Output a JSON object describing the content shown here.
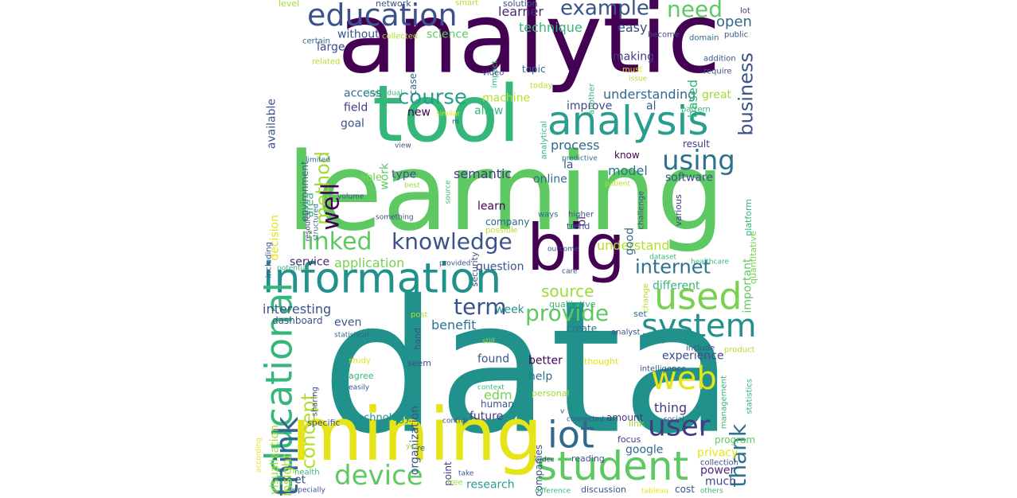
{
  "wordcloud": {
    "words": [
      {
        "text": "data",
        "color": "#21918c"
      },
      {
        "text": "learning",
        "color": "#5ec962"
      },
      {
        "text": "analytic",
        "color": "#440154"
      },
      {
        "text": "tool",
        "color": "#35b779"
      },
      {
        "text": "mining",
        "color": "#e5e419"
      },
      {
        "text": "big",
        "color": "#440154"
      },
      {
        "text": "information",
        "color": "#21918c"
      },
      {
        "text": "analysis",
        "color": "#2a9d8f"
      },
      {
        "text": "student",
        "color": "#5ec962"
      },
      {
        "text": "used",
        "color": "#7ad151"
      },
      {
        "text": "education",
        "color": "#3b528b"
      },
      {
        "text": "educational",
        "color": "#35b779"
      },
      {
        "text": "system",
        "color": "#21918c"
      },
      {
        "text": "web",
        "color": "#e5e419"
      },
      {
        "text": "iot",
        "color": "#31688e"
      },
      {
        "text": "user",
        "color": "#443983"
      },
      {
        "text": "device",
        "color": "#5ec962"
      },
      {
        "text": "knowledge",
        "color": "#3b528b"
      },
      {
        "text": "think",
        "color": "#31688e"
      },
      {
        "text": "using",
        "color": "#2c728e"
      },
      {
        "text": "example",
        "color": "#3b528b"
      },
      {
        "text": "need",
        "color": "#5ec962"
      },
      {
        "text": "course",
        "color": "#2a9d8f"
      },
      {
        "text": "business",
        "color": "#3b528b"
      },
      {
        "text": "internet",
        "color": "#2c728e"
      },
      {
        "text": "linked",
        "color": "#5ec962"
      },
      {
        "text": "method",
        "color": "#a0da39"
      },
      {
        "text": "well",
        "color": "#440154"
      },
      {
        "text": "term",
        "color": "#3b528b"
      },
      {
        "text": "provide",
        "color": "#5ec962"
      },
      {
        "text": "thank",
        "color": "#2c728e"
      },
      {
        "text": "concept",
        "color": "#b5de2b"
      },
      {
        "text": "source",
        "color": "#a0da39"
      },
      {
        "text": "open",
        "color": "#31688e"
      },
      {
        "text": "easy",
        "color": "#3e4a89"
      },
      {
        "text": "technique",
        "color": "#35b779"
      },
      {
        "text": "learner",
        "color": "#482878"
      },
      {
        "text": "science",
        "color": "#5ec962"
      },
      {
        "text": "without",
        "color": "#3b528b"
      },
      {
        "text": "large",
        "color": "#3e4a89"
      },
      {
        "text": "access",
        "color": "#31688e"
      },
      {
        "text": "machine",
        "color": "#b5de2b"
      },
      {
        "text": "allow",
        "color": "#35b779"
      },
      {
        "text": "field",
        "color": "#443983"
      },
      {
        "text": "new",
        "color": "#440154"
      },
      {
        "text": "goal",
        "color": "#3b528b"
      },
      {
        "text": "work",
        "color": "#5ec962"
      },
      {
        "text": "type",
        "color": "#3b528b"
      },
      {
        "text": "semantic",
        "color": "#443983"
      },
      {
        "text": "able",
        "color": "#7ad151"
      },
      {
        "text": "online",
        "color": "#31688e"
      },
      {
        "text": "learn",
        "color": "#440154"
      },
      {
        "text": "bi",
        "color": "#482878"
      },
      {
        "text": "la",
        "color": "#3b528b"
      },
      {
        "text": "model",
        "color": "#2c728e"
      },
      {
        "text": "software",
        "color": "#3b528b"
      },
      {
        "text": "process",
        "color": "#31688e"
      },
      {
        "text": "know",
        "color": "#440154"
      },
      {
        "text": "result",
        "color": "#443983"
      },
      {
        "text": "improve",
        "color": "#3e4a89"
      },
      {
        "text": "al",
        "color": "#3b528b"
      },
      {
        "text": "understanding",
        "color": "#31688e"
      },
      {
        "text": "based",
        "color": "#35b779"
      },
      {
        "text": "making",
        "color": "#443983"
      },
      {
        "text": "topic",
        "color": "#31688e"
      },
      {
        "text": "great",
        "color": "#a0da39"
      },
      {
        "text": "application",
        "color": "#7ad151"
      },
      {
        "text": "question",
        "color": "#3b528b"
      },
      {
        "text": "service",
        "color": "#482878"
      },
      {
        "text": "understand",
        "color": "#b5de2b"
      },
      {
        "text": "important",
        "color": "#5ec962"
      },
      {
        "text": "good",
        "color": "#31688e"
      },
      {
        "text": "different",
        "color": "#35b779"
      },
      {
        "text": "interesting",
        "color": "#3b528b"
      },
      {
        "text": "benefit",
        "color": "#2c728e"
      },
      {
        "text": "week",
        "color": "#21918c"
      },
      {
        "text": "even",
        "color": "#3b528b"
      },
      {
        "text": "experience",
        "color": "#3e4a89"
      },
      {
        "text": "better",
        "color": "#440154"
      },
      {
        "text": "help",
        "color": "#2c728e"
      },
      {
        "text": "edm",
        "color": "#7ad151"
      },
      {
        "text": "found",
        "color": "#3b528b"
      },
      {
        "text": "thing",
        "color": "#443983"
      },
      {
        "text": "organization",
        "color": "#3b528b"
      },
      {
        "text": "future",
        "color": "#443983"
      },
      {
        "text": "technology",
        "color": "#21918c"
      },
      {
        "text": "insight",
        "color": "#b5de2b"
      },
      {
        "text": "et",
        "color": "#3b528b"
      },
      {
        "text": "research",
        "color": "#2a9d8f"
      },
      {
        "text": "google",
        "color": "#31688e"
      },
      {
        "text": "privacy",
        "color": "#e5e419"
      },
      {
        "text": "power",
        "color": "#482878"
      },
      {
        "text": "much",
        "color": "#3e4a89"
      },
      {
        "text": "amount",
        "color": "#443983"
      },
      {
        "text": "create",
        "color": "#2c728e"
      },
      {
        "text": "visualization",
        "color": "#a0da39"
      },
      {
        "text": "decision",
        "color": "#e5e419"
      },
      {
        "text": "available",
        "color": "#3b528b"
      },
      {
        "text": "environment",
        "color": "#31688e"
      },
      {
        "text": "area",
        "color": "#35b779"
      },
      {
        "text": "dashboard",
        "color": "#3b528b"
      },
      {
        "text": "companies",
        "color": "#3b528b"
      },
      {
        "text": "point",
        "color": "#443983"
      },
      {
        "text": "security",
        "color": "#3b528b"
      },
      {
        "text": "company",
        "color": "#31688e"
      },
      {
        "text": "trend",
        "color": "#3b528b"
      },
      {
        "text": "qualitative",
        "color": "#35b779"
      },
      {
        "text": "reading",
        "color": "#3b528b"
      },
      {
        "text": "focus",
        "color": "#443983"
      },
      {
        "text": "link",
        "color": "#a0da39"
      },
      {
        "text": "program",
        "color": "#5ec962"
      },
      {
        "text": "collection",
        "color": "#3b528b"
      },
      {
        "text": "set",
        "color": "#2c728e"
      },
      {
        "text": "include",
        "color": "#3b528b"
      },
      {
        "text": "product",
        "color": "#b5de2b"
      },
      {
        "text": "thought",
        "color": "#e5e419"
      },
      {
        "text": "analyst",
        "color": "#3b528b"
      },
      {
        "text": "level",
        "color": "#a0da39"
      },
      {
        "text": "network",
        "color": "#3b528b"
      },
      {
        "text": "smart",
        "color": "#b5de2b"
      },
      {
        "text": "solution",
        "color": "#3b528b"
      },
      {
        "text": "lot",
        "color": "#443983"
      },
      {
        "text": "become",
        "color": "#3b528b"
      },
      {
        "text": "domain",
        "color": "#31688e"
      },
      {
        "text": "public",
        "color": "#3b528b"
      },
      {
        "text": "certain",
        "color": "#31688e"
      },
      {
        "text": "collected",
        "color": "#b5de2b"
      },
      {
        "text": "impact",
        "color": "#35b779"
      },
      {
        "text": "related",
        "color": "#b5de2b"
      },
      {
        "text": "video",
        "color": "#3b528b"
      },
      {
        "text": "another",
        "color": "#35b779"
      },
      {
        "text": "addition",
        "color": "#3b528b"
      },
      {
        "text": "require",
        "color": "#3b528b"
      },
      {
        "text": "must",
        "color": "#e5e419"
      },
      {
        "text": "case",
        "color": "#31688e"
      },
      {
        "text": "issue",
        "color": "#b5de2b"
      },
      {
        "text": "individual",
        "color": "#35b779"
      },
      {
        "text": "today",
        "color": "#b5de2b"
      },
      {
        "text": "pattern",
        "color": "#35b779"
      },
      {
        "text": "similar",
        "color": "#e5e419"
      },
      {
        "text": "analytical",
        "color": "#35b779"
      },
      {
        "text": "view",
        "color": "#3b528b"
      },
      {
        "text": "limited",
        "color": "#31688e"
      },
      {
        "text": "predictive",
        "color": "#31688e"
      },
      {
        "text": "best",
        "color": "#a0da39"
      },
      {
        "text": "patient",
        "color": "#b5de2b"
      },
      {
        "text": "volume",
        "color": "#3b528b"
      },
      {
        "text": "resource",
        "color": "#443983"
      },
      {
        "text": "source",
        "color": "#35b779"
      },
      {
        "text": "structured",
        "color": "#31688e"
      },
      {
        "text": "something",
        "color": "#3b528b"
      },
      {
        "text": "possible",
        "color": "#b5de2b"
      },
      {
        "text": "ways",
        "color": "#31688e"
      },
      {
        "text": "higher",
        "color": "#3b528b"
      },
      {
        "text": "challenge",
        "color": "#3b528b"
      },
      {
        "text": "various",
        "color": "#443983"
      },
      {
        "text": "platform",
        "color": "#35b779"
      },
      {
        "text": "quantitative",
        "color": "#7ad151"
      },
      {
        "text": "outcome",
        "color": "#3b528b"
      },
      {
        "text": "including",
        "color": "#3b528b"
      },
      {
        "text": "potential",
        "color": "#35b779"
      },
      {
        "text": "provided",
        "color": "#3b528b"
      },
      {
        "text": "care",
        "color": "#3b528b"
      },
      {
        "text": "dataset",
        "color": "#35b779"
      },
      {
        "text": "healthcare",
        "color": "#35b779"
      },
      {
        "text": "post",
        "color": "#b5de2b"
      },
      {
        "text": "hand",
        "color": "#3b528b"
      },
      {
        "text": "change",
        "color": "#b5de2b"
      },
      {
        "text": "statistical",
        "color": "#31688e"
      },
      {
        "text": "still",
        "color": "#a0da39"
      },
      {
        "text": "study",
        "color": "#e5e419"
      },
      {
        "text": "seem",
        "color": "#3b528b"
      },
      {
        "text": "agree",
        "color": "#35b779"
      },
      {
        "text": "easily",
        "color": "#3b528b"
      },
      {
        "text": "context",
        "color": "#35b779"
      },
      {
        "text": "sharing",
        "color": "#3b528b"
      },
      {
        "text": "human",
        "color": "#3b528b"
      },
      {
        "text": "intelligence",
        "color": "#3b528b"
      },
      {
        "text": "management",
        "color": "#35b779"
      },
      {
        "text": "statistics",
        "color": "#35b779"
      },
      {
        "text": "personal",
        "color": "#a0da39"
      },
      {
        "text": "specific",
        "color": "#3b528b"
      },
      {
        "text": "control",
        "color": "#3b528b"
      },
      {
        "text": "connected",
        "color": "#3b528b"
      },
      {
        "text": "social",
        "color": "#3b528b"
      },
      {
        "text": "according",
        "color": "#e5e419"
      },
      {
        "text": "year",
        "color": "#a0da39"
      },
      {
        "text": "re",
        "color": "#3b528b"
      },
      {
        "text": "order",
        "color": "#3b528b"
      },
      {
        "text": "take",
        "color": "#3b528b"
      },
      {
        "text": "health",
        "color": "#35b779"
      },
      {
        "text": "free",
        "color": "#a0da39"
      },
      {
        "text": "especially",
        "color": "#3b528b"
      },
      {
        "text": "difference",
        "color": "#35b779"
      },
      {
        "text": "discussion",
        "color": "#3b528b"
      },
      {
        "text": "tableau",
        "color": "#e5e419"
      },
      {
        "text": "cost",
        "color": "#3b528b"
      },
      {
        "text": "others",
        "color": "#35b779"
      },
      {
        "text": "m",
        "color": "#3b528b"
      },
      {
        "text": "v",
        "color": "#3b528b"
      }
    ]
  }
}
